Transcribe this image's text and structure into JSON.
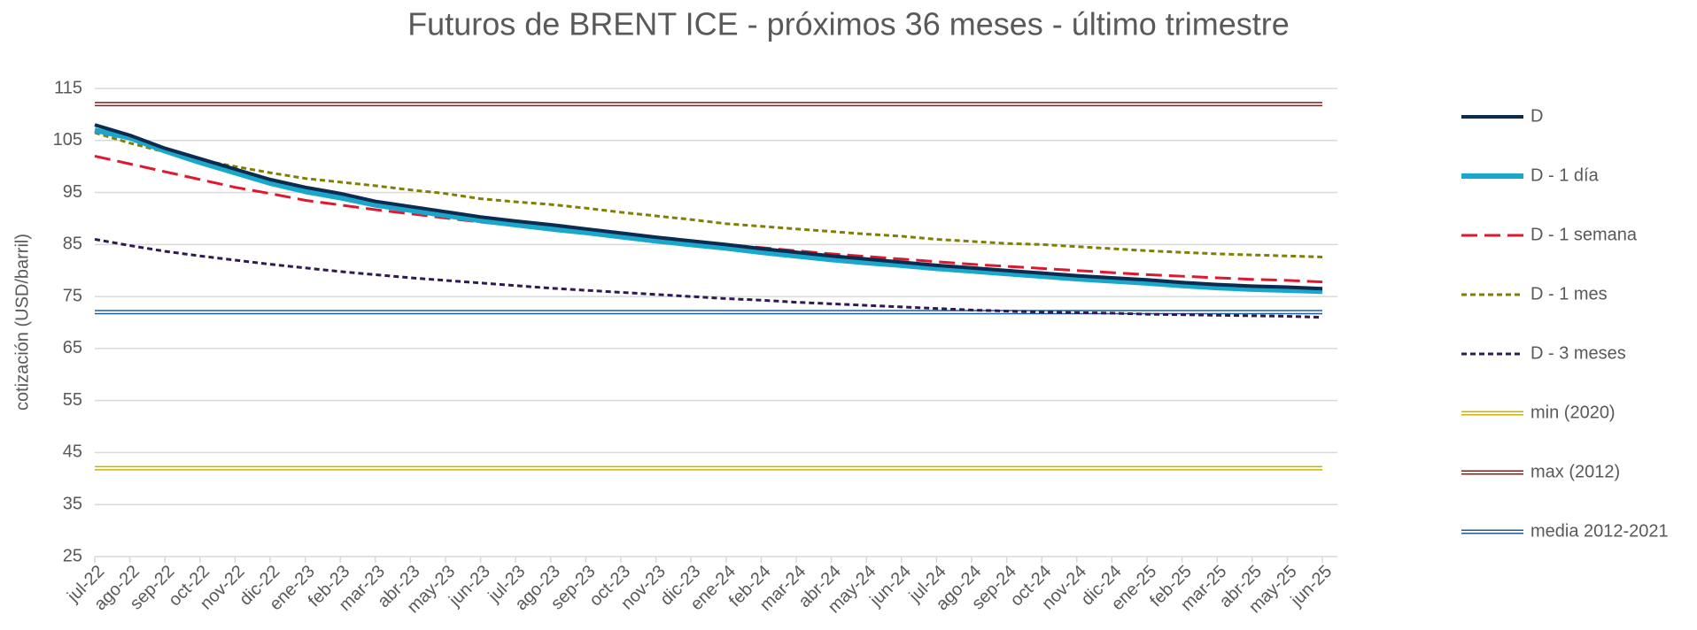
{
  "chart_data": {
    "type": "line",
    "title": "Futuros de BRENT ICE - próximos 36 meses - último trimestre",
    "y_label": "cotización (USD/barril)",
    "categories": [
      "jul-22",
      "ago-22",
      "sep-22",
      "oct-22",
      "nov-22",
      "dic-22",
      "ene-23",
      "feb-23",
      "mar-23",
      "abr-23",
      "may-23",
      "jun-23",
      "jul-23",
      "ago-23",
      "sep-23",
      "oct-23",
      "nov-23",
      "dic-23",
      "ene-24",
      "feb-24",
      "mar-24",
      "abr-24",
      "may-24",
      "jun-24",
      "jul-24",
      "ago-24",
      "sep-24",
      "oct-24",
      "nov-24",
      "dic-24",
      "ene-25",
      "feb-25",
      "mar-25",
      "abr-25",
      "may-25",
      "jun-25"
    ],
    "ylim": [
      25,
      115
    ],
    "yticks": [
      25,
      35,
      45,
      55,
      65,
      75,
      85,
      95,
      105,
      115
    ],
    "grid": true,
    "legend": "right",
    "series": [
      {
        "name": "D",
        "color": "#0d2a4f",
        "style": "solid",
        "width": 4,
        "values": [
          108,
          106,
          103.5,
          101.5,
          99.5,
          97.5,
          96,
          94.8,
          93.3,
          92.3,
          91.3,
          90.3,
          89.5,
          88.8,
          88,
          87.2,
          86.4,
          85.7,
          85,
          84.2,
          83.5,
          82.8,
          82.2,
          81.6,
          81,
          80.5,
          80,
          79.5,
          79,
          78.6,
          78.2,
          77.7,
          77.3,
          77,
          76.8,
          76.5
        ]
      },
      {
        "name": "D - 1 día",
        "color": "#1aa7cc",
        "style": "solid",
        "width": 6,
        "values": [
          107,
          105.5,
          103,
          100.8,
          98.8,
          96.8,
          95.2,
          94,
          92.6,
          91.6,
          90.6,
          89.6,
          88.8,
          88,
          87.3,
          86.5,
          85.7,
          85,
          84.3,
          83.5,
          82.8,
          82.1,
          81.5,
          81,
          80.4,
          79.9,
          79.4,
          78.9,
          78.4,
          78,
          77.6,
          77.1,
          76.7,
          76.4,
          76.2,
          76
        ]
      },
      {
        "name": "D - 1 semana",
        "color": "#e0182d",
        "style": "dashed",
        "width": 3,
        "values": [
          102,
          100.5,
          99,
          97.5,
          96,
          94.8,
          93.5,
          92.6,
          91.7,
          90.9,
          90.1,
          89.3,
          88.7,
          88.1,
          87.5,
          86.9,
          86.3,
          85.6,
          85,
          84.4,
          83.8,
          83.2,
          82.7,
          82.2,
          81.7,
          81.2,
          80.8,
          80.4,
          80,
          79.6,
          79.2,
          78.9,
          78.6,
          78.3,
          78.1,
          77.8
        ]
      },
      {
        "name": "D - 1 mes",
        "color": "#7f7f00",
        "style": "dotted",
        "width": 3,
        "values": [
          106.5,
          104.5,
          102.8,
          101.3,
          100,
          98.8,
          97.7,
          97,
          96.3,
          95.5,
          94.8,
          93.8,
          93.2,
          92.7,
          92,
          91.2,
          90.5,
          89.8,
          89,
          88.5,
          88,
          87.5,
          87,
          86.6,
          86,
          85.6,
          85.2,
          85,
          84.6,
          84.2,
          83.8,
          83.5,
          83.2,
          83,
          82.8,
          82.6
        ]
      },
      {
        "name": "D - 3 meses",
        "color": "#2e1a4f",
        "style": "dotted",
        "width": 3,
        "values": [
          86,
          84.8,
          83.7,
          82.8,
          82,
          81.2,
          80.5,
          79.8,
          79.2,
          78.6,
          78.1,
          77.6,
          77.1,
          76.6,
          76.2,
          75.8,
          75.4,
          75,
          74.6,
          74.3,
          73.9,
          73.6,
          73.3,
          73,
          72.7,
          72.4,
          72.2,
          72,
          71.9,
          71.8,
          71.6,
          71.5,
          71.4,
          71.3,
          71.2,
          71
        ]
      },
      {
        "name": "min (2020)",
        "color": "#c8b400",
        "style": "double",
        "width": 5,
        "values": [
          42,
          42,
          42,
          42,
          42,
          42,
          42,
          42,
          42,
          42,
          42,
          42,
          42,
          42,
          42,
          42,
          42,
          42,
          42,
          42,
          42,
          42,
          42,
          42,
          42,
          42,
          42,
          42,
          42,
          42,
          42,
          42,
          42,
          42,
          42,
          42
        ]
      },
      {
        "name": "max (2012)",
        "color": "#8b1a1a",
        "style": "double",
        "width": 5,
        "values": [
          112,
          112,
          112,
          112,
          112,
          112,
          112,
          112,
          112,
          112,
          112,
          112,
          112,
          112,
          112,
          112,
          112,
          112,
          112,
          112,
          112,
          112,
          112,
          112,
          112,
          112,
          112,
          112,
          112,
          112,
          112,
          112,
          112,
          112,
          112,
          112
        ]
      },
      {
        "name": "media 2012-2021",
        "color": "#1f5c99",
        "style": "double",
        "width": 5,
        "values": [
          72,
          72,
          72,
          72,
          72,
          72,
          72,
          72,
          72,
          72,
          72,
          72,
          72,
          72,
          72,
          72,
          72,
          72,
          72,
          72,
          72,
          72,
          72,
          72,
          72,
          72,
          72,
          72,
          72,
          72,
          72,
          72,
          72,
          72,
          72,
          72
        ]
      }
    ]
  }
}
